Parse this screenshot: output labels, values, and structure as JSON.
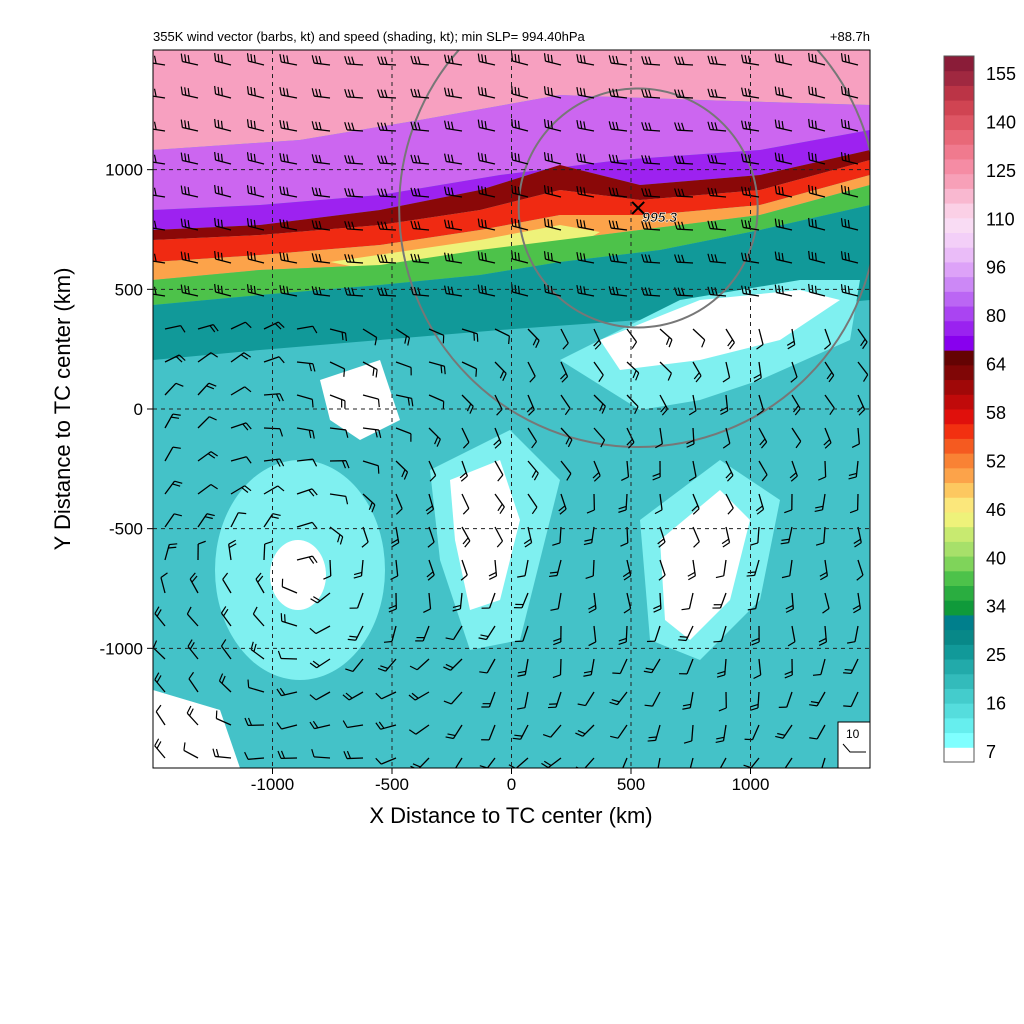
{
  "figure": {
    "title_left": "355K wind vector (barbs, kt) and speed (shading, kt); min SLP= 994.40hPa",
    "title_right": "+88.7h",
    "min_slp_label": "995.3",
    "ref_vector_label": "10"
  },
  "chart_data": {
    "type": "heatmap",
    "xlabel": "X Distance to TC center (km)",
    "ylabel": "Y Distance to TC center (km)",
    "xlim": [
      -1500,
      1500
    ],
    "ylim": [
      -1500,
      1500
    ],
    "x_ticks": [
      -1000,
      -500,
      0,
      500,
      1000
    ],
    "y_ticks": [
      -1000,
      -500,
      0,
      500,
      1000
    ],
    "grid": true,
    "center_marker": {
      "x": 530,
      "y": 840,
      "label": "995.3"
    },
    "range_rings_km": [
      500,
      1000
    ],
    "colorbar": {
      "labels": [
        "155",
        "140",
        "125",
        "110",
        "96",
        "80",
        "64",
        "58",
        "52",
        "46",
        "40",
        "34",
        "25",
        "16",
        "7"
      ],
      "colors": [
        "#ffffff",
        "#7fffff",
        "#66eeee",
        "#55dddd",
        "#44cccc",
        "#33bbbb",
        "#22aaaa",
        "#119999",
        "#088888",
        "#007f8c",
        "#0f9a3a",
        "#2aad40",
        "#4dc24a",
        "#7fd45a",
        "#a7e06a",
        "#c8ea70",
        "#eef27a",
        "#fbe77b",
        "#fdc860",
        "#fca34a",
        "#f98234",
        "#f55a20",
        "#f23010",
        "#e0100c",
        "#c00a0a",
        "#a00808",
        "#800606",
        "#640303",
        "#8800ee",
        "#9a22f0",
        "#aa44f2",
        "#bb66f4",
        "#cc88f6",
        "#dda2f8",
        "#eabcf8",
        "#f3cff8",
        "#f9dcf4",
        "#fbd0e6",
        "#f9b8d0",
        "#f7a0b8",
        "#f58ca4",
        "#f07a8e",
        "#e86878",
        "#de5664",
        "#d04452",
        "#bb3446",
        "#a02840",
        "#8a1c38"
      ]
    }
  }
}
